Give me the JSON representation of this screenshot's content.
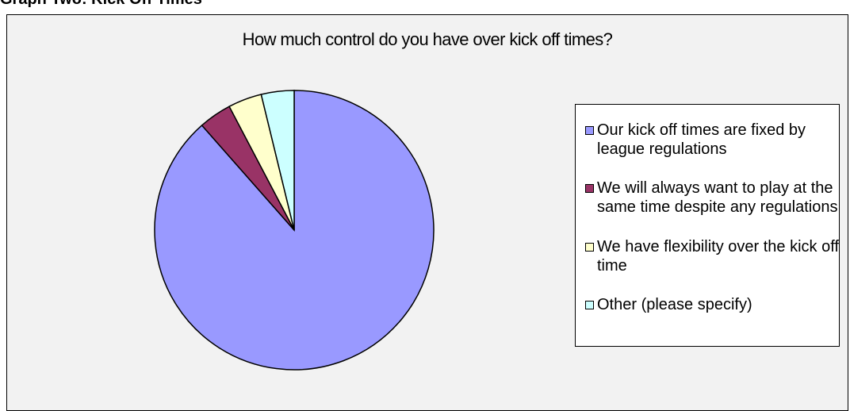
{
  "caption": "Graph Two: Kick Off Times",
  "chart_data": {
    "type": "pie",
    "title": "How much control do you have over kick off times?",
    "categories": [
      "Our kick off times are fixed by league regulations",
      "We will always want to play at the same time despite any regulations",
      "We have flexibility over the kick off time",
      "Other (please specify)"
    ],
    "values": [
      88.5,
      3.8,
      3.9,
      3.8
    ],
    "colors": [
      "#9999ff",
      "#993366",
      "#ffffcc",
      "#ccffff"
    ],
    "legend_position": "right"
  }
}
